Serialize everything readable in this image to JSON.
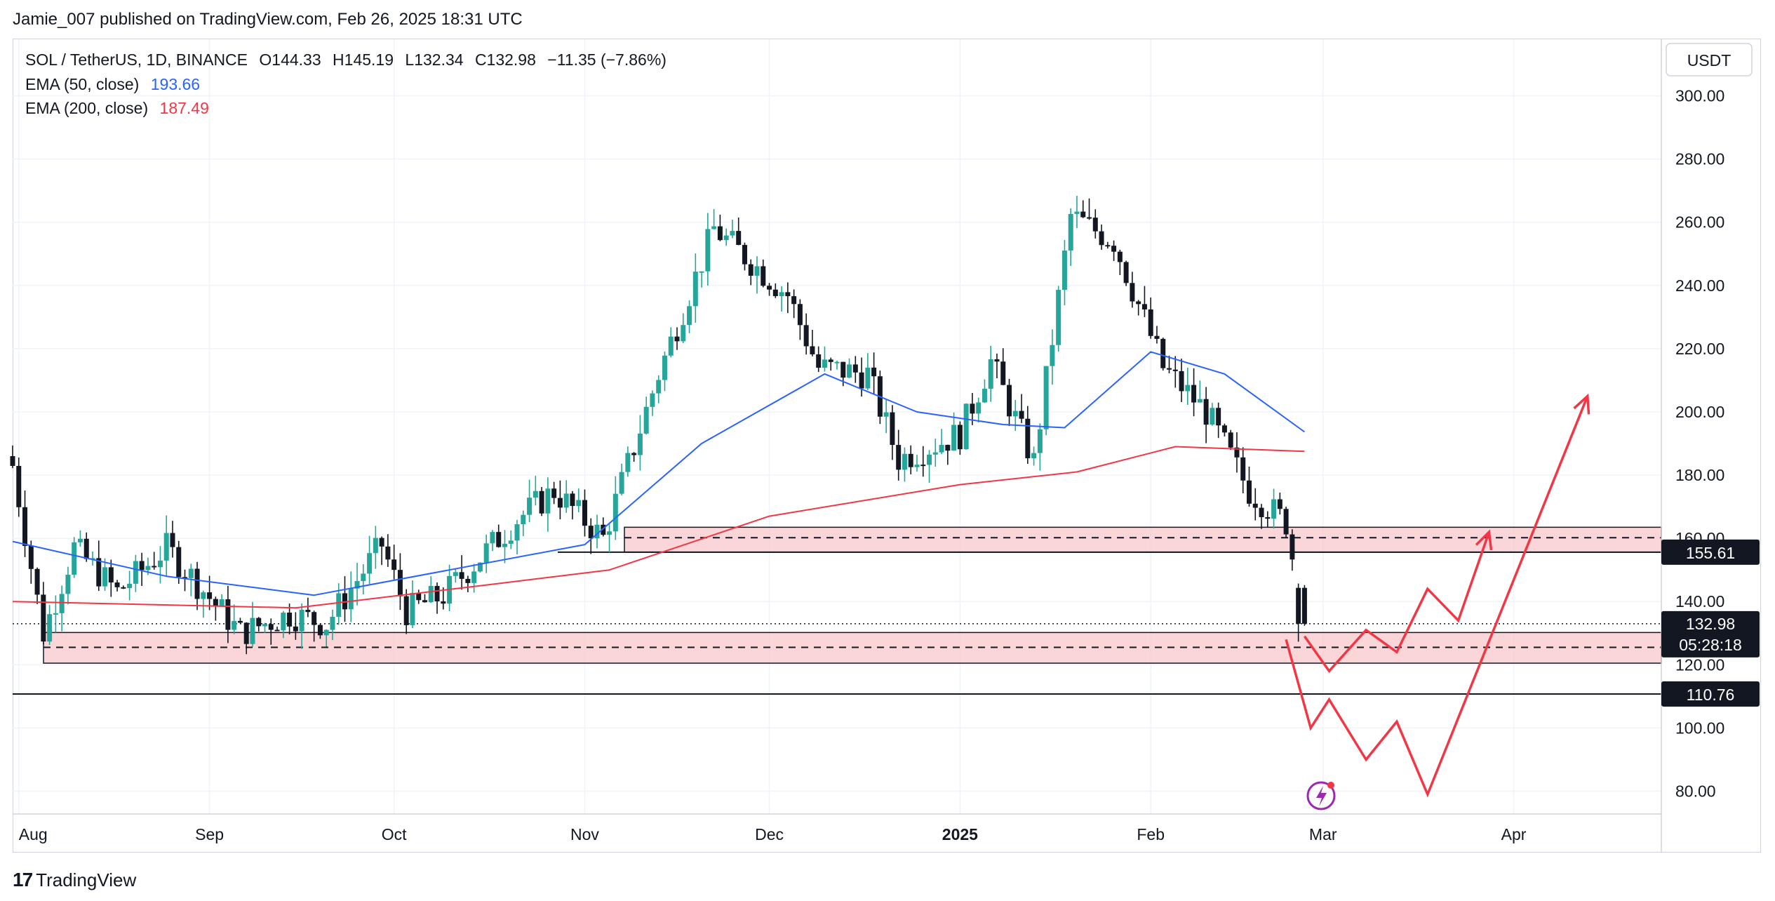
{
  "header": {
    "published_text": "Jamie_007 published on TradingView.com, Feb 26, 2025 18:31 UTC"
  },
  "legend": {
    "symbol": "SOL / TetherUS, 1D, BINANCE",
    "open": "O144.33",
    "high": "H145.19",
    "low": "L132.34",
    "close": "C132.98",
    "change": "−11.35 (−7.86%)",
    "ema50_label": "EMA (50, close)",
    "ema50_value": "193.66",
    "ema200_label": "EMA (200, close)",
    "ema200_value": "187.49"
  },
  "price_axis": {
    "currency": "USDT",
    "ticks": [
      "300.00",
      "280.00",
      "260.00",
      "240.00",
      "220.00",
      "200.00",
      "180.00",
      "160.00",
      "140.00",
      "120.00",
      "100.00",
      "80.00"
    ]
  },
  "time_axis": {
    "ticks": [
      "Aug",
      "Sep",
      "Oct",
      "Nov",
      "Dec",
      "2025",
      "Feb",
      "Mar",
      "Apr"
    ]
  },
  "price_tags": {
    "resistance": "155.61",
    "last_price": "132.98",
    "countdown": "05:28:18",
    "support": "110.76"
  },
  "footer": {
    "brand": "TradingView"
  },
  "colors": {
    "up": "#26a69a",
    "down": "#131722",
    "ema50": "#2962ff",
    "ema200": "#f23645",
    "zone": "#f8c8cc",
    "projection": "#f23645"
  },
  "chart_data": {
    "type": "candlestick",
    "symbol": "SOL / TetherUS",
    "interval": "1D",
    "exchange": "BINANCE",
    "ylim": [
      70,
      310
    ],
    "y_ticks": [
      80,
      100,
      120,
      140,
      160,
      180,
      200,
      220,
      240,
      260,
      280,
      300
    ],
    "x_ticks": [
      "Aug",
      "Sep",
      "Oct",
      "Nov",
      "Dec",
      "2025",
      "Feb",
      "Mar",
      "Apr"
    ],
    "date_range": [
      "2024-07-31",
      "2025-04-25"
    ],
    "last_candle": {
      "date": "2025-02-26",
      "open": 144.33,
      "high": 145.19,
      "low": 132.34,
      "close": 132.98
    },
    "close_path": [
      {
        "date": "2024-07-31",
        "close": 183
      },
      {
        "date": "2024-08-05",
        "close": 130
      },
      {
        "date": "2024-08-10",
        "close": 157
      },
      {
        "date": "2024-08-17",
        "close": 143
      },
      {
        "date": "2024-08-25",
        "close": 157
      },
      {
        "date": "2024-09-06",
        "close": 130
      },
      {
        "date": "2024-09-14",
        "close": 136
      },
      {
        "date": "2024-09-20",
        "close": 133
      },
      {
        "date": "2024-09-29",
        "close": 158
      },
      {
        "date": "2024-10-03",
        "close": 137
      },
      {
        "date": "2024-10-09",
        "close": 142
      },
      {
        "date": "2024-10-21",
        "close": 166
      },
      {
        "date": "2024-10-27",
        "close": 175
      },
      {
        "date": "2024-11-04",
        "close": 160
      },
      {
        "date": "2024-11-13",
        "close": 212
      },
      {
        "date": "2024-11-22",
        "close": 258
      },
      {
        "date": "2024-12-04",
        "close": 237
      },
      {
        "date": "2024-12-09",
        "close": 214
      },
      {
        "date": "2024-12-17",
        "close": 212
      },
      {
        "date": "2024-12-22",
        "close": 185
      },
      {
        "date": "2025-01-01",
        "close": 193
      },
      {
        "date": "2025-01-06",
        "close": 216
      },
      {
        "date": "2025-01-13",
        "close": 184
      },
      {
        "date": "2025-01-19",
        "close": 262
      },
      {
        "date": "2025-01-26",
        "close": 254
      },
      {
        "date": "2025-02-03",
        "close": 214
      },
      {
        "date": "2025-02-10",
        "close": 200
      },
      {
        "date": "2025-02-17",
        "close": 175
      },
      {
        "date": "2025-02-23",
        "close": 165
      },
      {
        "date": "2025-02-26",
        "close": 132.98
      }
    ],
    "ema50": [
      {
        "date": "2024-07-31",
        "value": 159
      },
      {
        "date": "2024-08-25",
        "value": 148
      },
      {
        "date": "2024-09-18",
        "value": 142
      },
      {
        "date": "2024-10-10",
        "value": 150
      },
      {
        "date": "2024-11-01",
        "value": 158
      },
      {
        "date": "2024-11-20",
        "value": 190
      },
      {
        "date": "2024-12-10",
        "value": 212
      },
      {
        "date": "2024-12-25",
        "value": 200
      },
      {
        "date": "2025-01-08",
        "value": 196
      },
      {
        "date": "2025-01-18",
        "value": 195
      },
      {
        "date": "2025-02-01",
        "value": 219
      },
      {
        "date": "2025-02-13",
        "value": 212
      },
      {
        "date": "2025-02-26",
        "value": 193.66
      }
    ],
    "ema200": [
      {
        "date": "2024-07-31",
        "value": 140
      },
      {
        "date": "2024-09-15",
        "value": 138
      },
      {
        "date": "2024-10-15",
        "value": 145
      },
      {
        "date": "2024-11-05",
        "value": 150
      },
      {
        "date": "2024-12-01",
        "value": 167
      },
      {
        "date": "2025-01-01",
        "value": 177
      },
      {
        "date": "2025-01-20",
        "value": 181
      },
      {
        "date": "2025-02-05",
        "value": 189
      },
      {
        "date": "2025-02-26",
        "value": 187.49
      }
    ],
    "zones": [
      {
        "low": 155.61,
        "high": 163.5,
        "mid": 160.2
      },
      {
        "low": 120.5,
        "high": 130.2,
        "mid": 125.5
      }
    ],
    "horizontal_lines": [
      155.61,
      110.76
    ],
    "projection_paths": [
      [
        {
          "date": "2025-02-26",
          "value": 129
        },
        {
          "date": "2025-03-02",
          "value": 118
        },
        {
          "date": "2025-03-08",
          "value": 131
        },
        {
          "date": "2025-03-13",
          "value": 124
        },
        {
          "date": "2025-03-18",
          "value": 144
        },
        {
          "date": "2025-03-23",
          "value": 134
        },
        {
          "date": "2025-03-28",
          "value": 162
        }
      ],
      [
        {
          "date": "2025-02-23",
          "value": 128
        },
        {
          "date": "2025-02-27",
          "value": 100
        },
        {
          "date": "2025-03-02",
          "value": 109
        },
        {
          "date": "2025-03-08",
          "value": 90
        },
        {
          "date": "2025-03-13",
          "value": 102
        },
        {
          "date": "2025-03-18",
          "value": 79
        },
        {
          "date": "2025-04-13",
          "value": 205
        }
      ]
    ]
  }
}
